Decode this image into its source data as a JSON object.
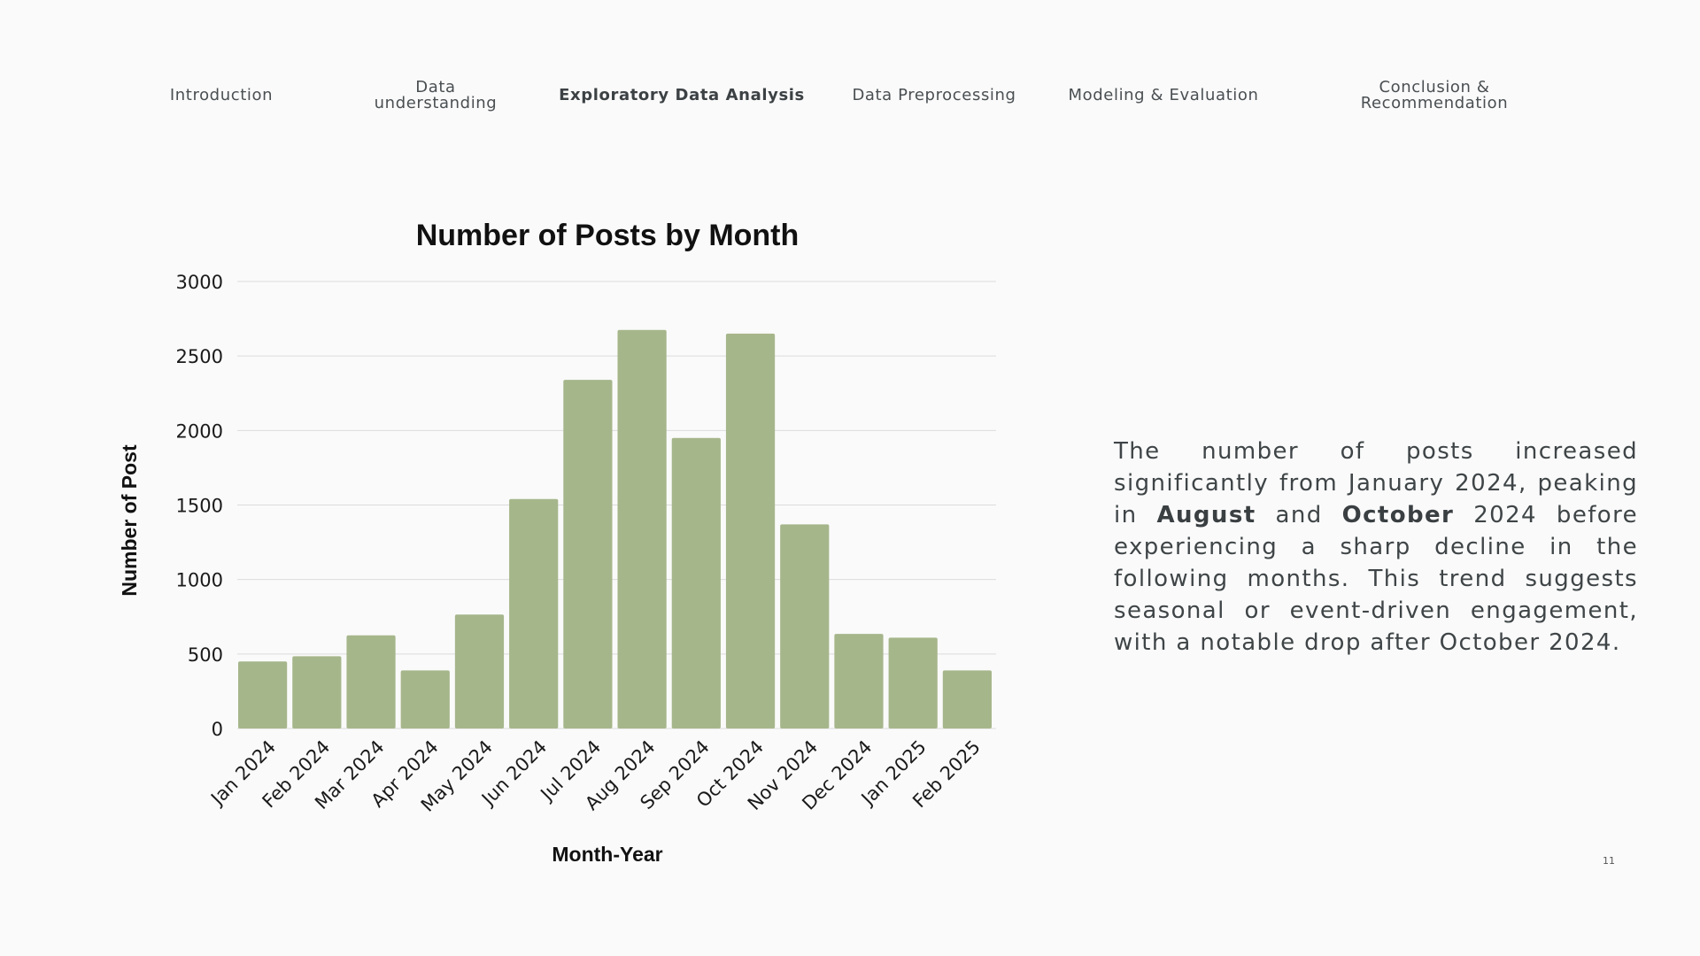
{
  "nav": {
    "items": [
      {
        "label": "Introduction",
        "active": false
      },
      {
        "label": "Data\nunderstanding",
        "active": false
      },
      {
        "label": "Exploratory Data Analysis",
        "active": true
      },
      {
        "label": "Data Preprocessing",
        "active": false
      },
      {
        "label": "Modeling & Evaluation",
        "active": false
      },
      {
        "label": "Conclusion &\nRecommendation",
        "active": false
      }
    ]
  },
  "chart_data": {
    "type": "bar",
    "title": "Number of Posts by Month",
    "xlabel": "Month-Year",
    "ylabel": "Number of Post",
    "categories": [
      "Jan 2024",
      "Feb 2024",
      "Mar 2024",
      "Apr 2024",
      "May 2024",
      "Jun 2024",
      "Jul 2024",
      "Aug 2024",
      "Sep 2024",
      "Oct 2024",
      "Nov 2024",
      "Dec 2024",
      "Jan 2025",
      "Feb 2025"
    ],
    "values": [
      450,
      485,
      625,
      390,
      765,
      1540,
      2340,
      2675,
      1950,
      2650,
      1370,
      635,
      610,
      390
    ],
    "ylim": [
      0,
      3000
    ],
    "yticks": [
      0,
      500,
      1000,
      1500,
      2000,
      2500,
      3000
    ],
    "grid": true,
    "bar_color": "#a6b68b"
  },
  "description": {
    "part1": "The number of posts increased significantly from January 2024, peaking in ",
    "highlight1": "August",
    "part2": " and ",
    "highlight2": "October",
    "part3": " 2024 before experiencing a sharp decline in the following months. This trend suggests seasonal or event-driven engagement, with a notable drop after October 2024."
  },
  "page_number": "11"
}
